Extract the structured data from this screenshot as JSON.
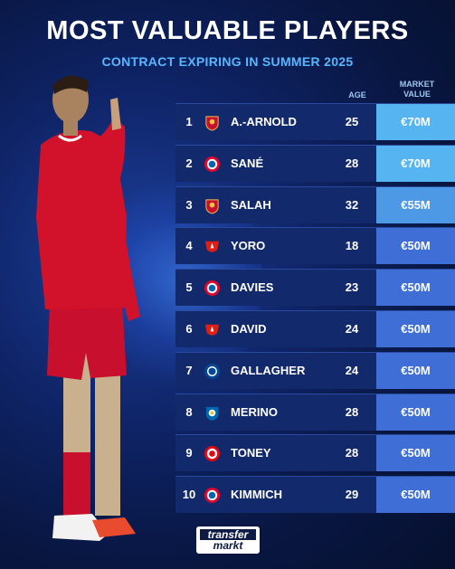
{
  "header": {
    "title": "MOST VALUABLE PLAYERS",
    "subtitle": "CONTRACT EXPIRING IN SUMMER 2025"
  },
  "columns": {
    "age": "AGE",
    "market_value": [
      "MARKET",
      "VALUE"
    ]
  },
  "players": [
    {
      "rank": "1",
      "name": "A.-ARNOLD",
      "age": "25",
      "value": "€70M",
      "club": "liverpool-crest-icon"
    },
    {
      "rank": "2",
      "name": "SANÉ",
      "age": "28",
      "value": "€70M",
      "club": "bayern-crest-icon"
    },
    {
      "rank": "3",
      "name": "SALAH",
      "age": "32",
      "value": "€55M",
      "club": "liverpool-crest-icon"
    },
    {
      "rank": "4",
      "name": "YORO",
      "age": "18",
      "value": "€50M",
      "club": "lille-crest-icon"
    },
    {
      "rank": "5",
      "name": "DAVIES",
      "age": "23",
      "value": "€50M",
      "club": "bayern-crest-icon"
    },
    {
      "rank": "6",
      "name": "DAVID",
      "age": "24",
      "value": "€50M",
      "club": "lille-crest-icon"
    },
    {
      "rank": "7",
      "name": "GALLAGHER",
      "age": "24",
      "value": "€50M",
      "club": "chelsea-crest-icon"
    },
    {
      "rank": "8",
      "name": "MERINO",
      "age": "28",
      "value": "€50M",
      "club": "real-sociedad-crest-icon"
    },
    {
      "rank": "9",
      "name": "TONEY",
      "age": "28",
      "value": "€50M",
      "club": "brentford-crest-icon"
    },
    {
      "rank": "10",
      "name": "KIMMICH",
      "age": "29",
      "value": "€50M",
      "club": "bayern-crest-icon"
    }
  ],
  "colors": {
    "value_70": "#56b4f0",
    "value_55": "#4d99e6",
    "value_50": "#3f6fd6",
    "subtitle": "#58b7ff",
    "kit_red": "#d1122a"
  },
  "brand": {
    "line1": "transfer",
    "line2": "markt"
  }
}
